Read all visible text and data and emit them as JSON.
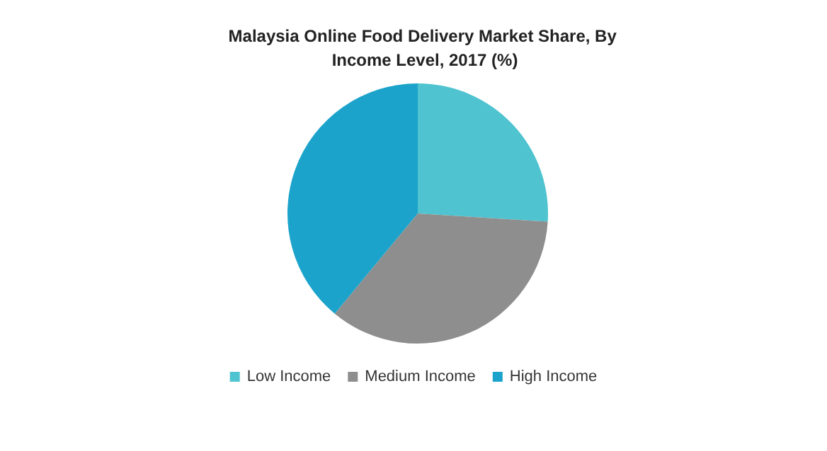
{
  "chart_data": {
    "type": "pie",
    "title": "Malaysia Online Food Delivery Market Share, By Income Level, 2017 (%)",
    "categories": [
      "Low Income",
      "Medium Income",
      "High Income"
    ],
    "values": [
      26,
      35,
      39
    ],
    "colors": [
      "#4fc3d0",
      "#8e8e8e",
      "#1ba3cb"
    ],
    "legend": "bottom"
  }
}
